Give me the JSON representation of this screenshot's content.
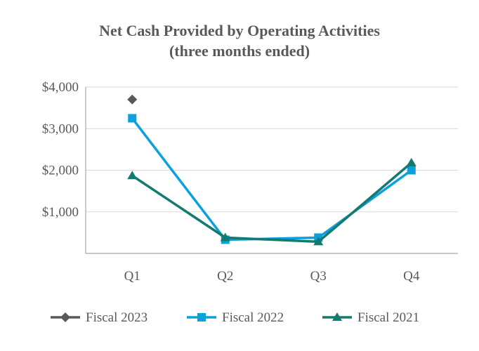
{
  "chart_data": {
    "type": "line",
    "title": [
      "Net Cash Provided by Operating Activities",
      "(three months ended)"
    ],
    "categories": [
      "Q1",
      "Q2",
      "Q3",
      "Q4"
    ],
    "ylim": [
      0,
      4000
    ],
    "yticks": [
      1000,
      2000,
      3000,
      4000
    ],
    "ytick_labels": [
      "$1,000",
      "$2,000",
      "$3,000",
      "$4,000"
    ],
    "grid": true,
    "legend_position": "bottom",
    "series": [
      {
        "name": "Fiscal 2023",
        "values": [
          3700,
          null,
          null,
          null
        ],
        "color": "#595959",
        "marker": "diamond"
      },
      {
        "name": "Fiscal 2022",
        "values": [
          3250,
          330,
          380,
          2000
        ],
        "color": "#0aa1dd",
        "marker": "square"
      },
      {
        "name": "Fiscal 2021",
        "values": [
          1870,
          380,
          280,
          2180
        ],
        "color": "#137a6f",
        "marker": "triangle"
      }
    ]
  }
}
